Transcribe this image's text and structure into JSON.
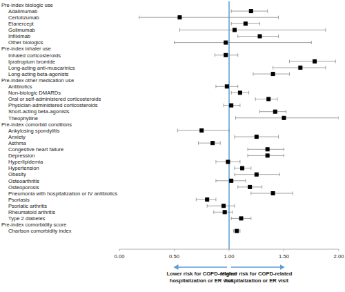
{
  "chart_data": {
    "type": "forest",
    "orientation": "horizontal",
    "color": "#000000",
    "marker": "square",
    "xlim": [
      0,
      2
    ],
    "xticks": [
      {
        "value": 0,
        "label": "0.00"
      },
      {
        "value": 0.5,
        "label": "0.50"
      },
      {
        "value": 1,
        "label": "1.00"
      },
      {
        "value": 1.5,
        "label": "1.50"
      },
      {
        "value": 2,
        "label": "2.00"
      }
    ],
    "reference_line": 1,
    "annotations": {
      "left": [
        "Lower risk for COPD-related",
        "hospitalization or ER visit"
      ],
      "right": [
        "Higher risk for COPD-related",
        "hospitalization or ER visit"
      ]
    },
    "groups": [
      {
        "title": "Pre-index biologic use",
        "categories": [
          "Adalimumab",
          "Certolizumab",
          "Etanercept",
          "Golimumab",
          "Infliximab",
          "Other biologics"
        ],
        "values": [
          1.2,
          0.55,
          1.15,
          1.05,
          1.28,
          0.97
        ],
        "lower": [
          1.02,
          0.18,
          1.02,
          0.55,
          1.08,
          0.5
        ],
        "upper": [
          1.35,
          1.45,
          1.28,
          1.88,
          1.45,
          1.75
        ]
      },
      {
        "title": "Pre-index inhaler use",
        "categories": [
          "Inhaled corticosteroids",
          "Ipratropium bromide",
          "Long-acting anti-muscarinics",
          "Long-acting beta-agonists"
        ],
        "values": [
          0.97,
          1.78,
          1.65,
          1.4
        ],
        "lower": [
          0.87,
          1.55,
          1.4,
          1.22
        ],
        "upper": [
          1.08,
          1.97,
          1.88,
          1.55
        ]
      },
      {
        "title": "Pre-index other medication use",
        "categories": [
          "Antibiotics",
          "Non-biologic DMARDs",
          "Oral or self-administered corticosteroids",
          "Physician-administered corticosteroids",
          "Short-acting beta-agonists",
          "Theophylline"
        ],
        "values": [
          0.98,
          1.1,
          1.36,
          1.02,
          1.42,
          1.5
        ],
        "lower": [
          0.88,
          1.02,
          1.24,
          0.95,
          1.28,
          1.06
        ],
        "upper": [
          1.08,
          1.18,
          1.44,
          1.1,
          1.52,
          2.0
        ]
      },
      {
        "title": "Pre-index comorbid conditions",
        "categories": [
          "Ankylosing spondylitis",
          "Anxiety",
          "Asthma",
          "Congestive heart failure",
          "Depression",
          "Hyperlipidemia",
          "Hypertension",
          "Obesity",
          "Osteoarthritis",
          "Osteoporosis",
          "Pneumonia with hospitalization or IV antibiotics",
          "Psoriasis",
          "Psoriatic arthritis",
          "Rheumatoid arthritis",
          "Type 2 diabetes"
        ],
        "values": [
          0.75,
          1.25,
          0.85,
          1.35,
          1.35,
          0.99,
          1.12,
          1.25,
          1.02,
          1.19,
          1.4,
          0.8,
          0.95,
          0.96,
          1.11
        ],
        "lower": [
          0.53,
          1.05,
          0.72,
          1.17,
          1.17,
          0.88,
          1.05,
          1.05,
          0.88,
          1.08,
          1.2,
          0.7,
          0.8,
          0.86,
          1.02
        ],
        "upper": [
          1.0,
          1.45,
          0.92,
          1.5,
          1.5,
          1.1,
          1.2,
          1.46,
          1.15,
          1.3,
          1.58,
          0.88,
          1.05,
          1.03,
          1.2
        ]
      },
      {
        "title": "Pre-index comorbidity score",
        "categories": [
          "Charlson comorbidity index"
        ],
        "values": [
          1.07
        ],
        "lower": [
          1.04
        ],
        "upper": [
          1.1
        ]
      }
    ]
  }
}
